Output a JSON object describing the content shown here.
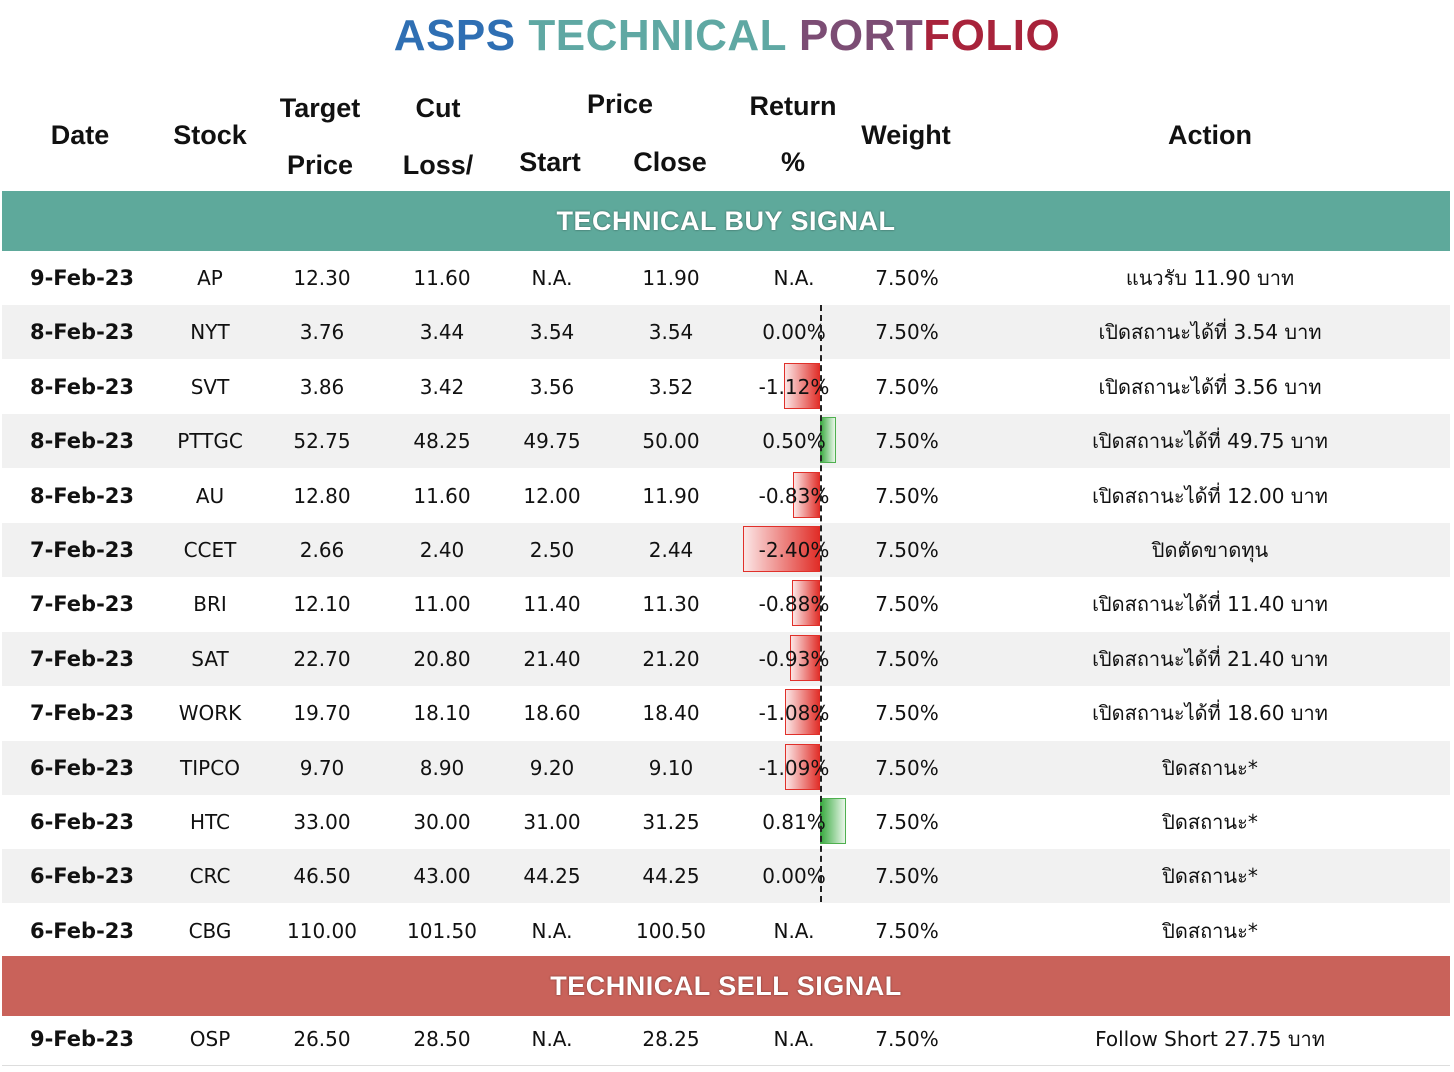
{
  "title": {
    "part1": "ASPS",
    "part2": "TECHNICAL",
    "part3": "PORT",
    "part4": "FOLIO"
  },
  "headers": {
    "date": "Date",
    "stock": "Stock",
    "target_top": "Target",
    "target_bottom": "Price",
    "cut_top": "Cut",
    "cut_bottom": "Loss/",
    "price_top": "Price",
    "start": "Start",
    "close": "Close",
    "return_top": "Return",
    "return_bottom": "%",
    "weight": "Weight",
    "action": "Action"
  },
  "sections": {
    "buy_label": "TECHNICAL BUY SIGNAL",
    "sell_label": "TECHNICAL SELL SIGNAL"
  },
  "buy_rows": [
    {
      "date": "9-Feb-23",
      "stock": "AP",
      "target": "12.30",
      "cut": "11.60",
      "start": "N.A.",
      "close": "11.90",
      "ret": "N.A.",
      "ret_val": null,
      "weight": "7.50%",
      "action": "แนวรับ 11.90 บาท"
    },
    {
      "date": "8-Feb-23",
      "stock": "NYT",
      "target": "3.76",
      "cut": "3.44",
      "start": "3.54",
      "close": "3.54",
      "ret": "0.00%",
      "ret_val": 0.0,
      "weight": "7.50%",
      "action": "เปิดสถานะได้ที่ 3.54 บาท"
    },
    {
      "date": "8-Feb-23",
      "stock": "SVT",
      "target": "3.86",
      "cut": "3.42",
      "start": "3.56",
      "close": "3.52",
      "ret": "-1.12%",
      "ret_val": -1.12,
      "weight": "7.50%",
      "action": "เปิดสถานะได้ที่ 3.56 บาท"
    },
    {
      "date": "8-Feb-23",
      "stock": "PTTGC",
      "target": "52.75",
      "cut": "48.25",
      "start": "49.75",
      "close": "50.00",
      "ret": "0.50%",
      "ret_val": 0.5,
      "weight": "7.50%",
      "action": "เปิดสถานะได้ที่ 49.75 บาท"
    },
    {
      "date": "8-Feb-23",
      "stock": "AU",
      "target": "12.80",
      "cut": "11.60",
      "start": "12.00",
      "close": "11.90",
      "ret": "-0.83%",
      "ret_val": -0.83,
      "weight": "7.50%",
      "action": "เปิดสถานะได้ที่ 12.00 บาท"
    },
    {
      "date": "7-Feb-23",
      "stock": "CCET",
      "target": "2.66",
      "cut": "2.40",
      "start": "2.50",
      "close": "2.44",
      "ret": "-2.40%",
      "ret_val": -2.4,
      "weight": "7.50%",
      "action": "ปิดตัดขาดทุน"
    },
    {
      "date": "7-Feb-23",
      "stock": "BRI",
      "target": "12.10",
      "cut": "11.00",
      "start": "11.40",
      "close": "11.30",
      "ret": "-0.88%",
      "ret_val": -0.88,
      "weight": "7.50%",
      "action": "เปิดสถานะได้ที่ 11.40 บาท"
    },
    {
      "date": "7-Feb-23",
      "stock": "SAT",
      "target": "22.70",
      "cut": "20.80",
      "start": "21.40",
      "close": "21.20",
      "ret": "-0.93%",
      "ret_val": -0.93,
      "weight": "7.50%",
      "action": "เปิดสถานะได้ที่ 21.40 บาท"
    },
    {
      "date": "7-Feb-23",
      "stock": "WORK",
      "target": "19.70",
      "cut": "18.10",
      "start": "18.60",
      "close": "18.40",
      "ret": "-1.08%",
      "ret_val": -1.08,
      "weight": "7.50%",
      "action": "เปิดสถานะได้ที่ 18.60 บาท"
    },
    {
      "date": "6-Feb-23",
      "stock": "TIPCO",
      "target": "9.70",
      "cut": "8.90",
      "start": "9.20",
      "close": "9.10",
      "ret": "-1.09%",
      "ret_val": -1.09,
      "weight": "7.50%",
      "action": "ปิดสถานะ*"
    },
    {
      "date": "6-Feb-23",
      "stock": "HTC",
      "target": "33.00",
      "cut": "30.00",
      "start": "31.00",
      "close": "31.25",
      "ret": "0.81%",
      "ret_val": 0.81,
      "weight": "7.50%",
      "action": "ปิดสถานะ*"
    },
    {
      "date": "6-Feb-23",
      "stock": "CRC",
      "target": "46.50",
      "cut": "43.00",
      "start": "44.25",
      "close": "44.25",
      "ret": "0.00%",
      "ret_val": 0.0,
      "weight": "7.50%",
      "action": "ปิดสถานะ*"
    },
    {
      "date": "6-Feb-23",
      "stock": "CBG",
      "target": "110.00",
      "cut": "101.50",
      "start": "N.A.",
      "close": "100.50",
      "ret": "N.A.",
      "ret_val": null,
      "weight": "7.50%",
      "action": "ปิดสถานะ*"
    }
  ],
  "sell_rows": [
    {
      "date": "9-Feb-23",
      "stock": "OSP",
      "target": "26.50",
      "cut": "28.50",
      "start": "N.A.",
      "close": "28.25",
      "ret": "N.A.",
      "ret_val": null,
      "weight": "7.50%",
      "action": "Follow Short 27.75 บาท"
    }
  ],
  "colors": {
    "buy_band": "#5ea99b",
    "sell_band": "#c9625a",
    "negative_bar": "#e02b25",
    "positive_bar": "#33a83a"
  }
}
